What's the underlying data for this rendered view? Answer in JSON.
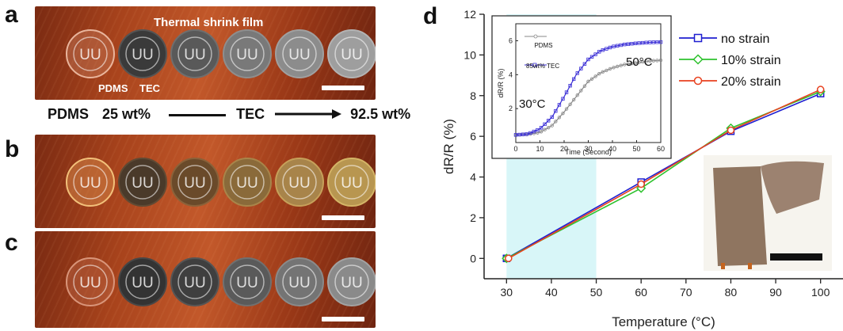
{
  "panels": {
    "a": "a",
    "b": "b",
    "c": "c",
    "d": "d"
  },
  "annotations": {
    "thermal_shrink_film": "Thermal shrink film",
    "pdms": "PDMS",
    "tec": "TEC"
  },
  "disc_label": "UU",
  "ratio_row": {
    "left": "PDMS",
    "start": "25 wt%",
    "middle": "TEC",
    "end": "92.5 wt%"
  },
  "colors": {
    "no_strain": "#1f1fd0",
    "strain_10": "#2ec22e",
    "strain_20": "#e8411f",
    "highlight": "#d8f6f8",
    "inset_pdms": "#8a8a8a",
    "inset_tec": "#3b2fd6"
  },
  "chart_data": [
    {
      "type": "line",
      "xlabel": "Temperature (°C)",
      "ylabel": "dR/R (%)",
      "xlim": [
        25,
        105
      ],
      "ylim": [
        -1,
        12
      ],
      "xticks": [
        30,
        40,
        50,
        60,
        70,
        80,
        90,
        100
      ],
      "yticks": [
        0,
        2,
        4,
        6,
        8,
        10,
        12
      ],
      "x": [
        30,
        60,
        80,
        100
      ],
      "highlight_range": [
        30,
        50
      ],
      "legend_position": "top-right",
      "series": [
        {
          "name": "no strain",
          "marker": "square",
          "values": [
            0.0,
            3.75,
            6.25,
            8.1
          ]
        },
        {
          "name": "10% strain",
          "marker": "diamond",
          "values": [
            0.0,
            3.45,
            6.4,
            8.2
          ]
        },
        {
          "name": "20% strain",
          "marker": "circle",
          "values": [
            0.0,
            3.65,
            6.3,
            8.3
          ]
        }
      ]
    },
    {
      "type": "line",
      "xlabel": "Time (Second)",
      "ylabel": "dR/R (%)",
      "xlim": [
        0,
        60
      ],
      "ylim": [
        0,
        7
      ],
      "xticks": [
        0,
        10,
        20,
        30,
        40,
        50,
        60
      ],
      "yticks": [
        2,
        4,
        6
      ],
      "annotations": [
        "30°C",
        "50°C"
      ],
      "legend_position": "top-left",
      "series": [
        {
          "name": "PDMS",
          "x": [
            0,
            5,
            10,
            15,
            20,
            25,
            30,
            35,
            40,
            45,
            50,
            55,
            60
          ],
          "values": [
            0.45,
            0.48,
            0.6,
            1.0,
            1.8,
            2.7,
            3.6,
            4.1,
            4.4,
            4.6,
            4.7,
            4.8,
            4.85
          ]
        },
        {
          "name": "85wt% TEC",
          "x": [
            0,
            5,
            10,
            15,
            20,
            25,
            30,
            35,
            40,
            45,
            50,
            55,
            60
          ],
          "values": [
            0.45,
            0.5,
            0.8,
            1.5,
            2.7,
            4.0,
            4.9,
            5.4,
            5.65,
            5.78,
            5.85,
            5.9,
            5.92
          ]
        }
      ]
    }
  ]
}
